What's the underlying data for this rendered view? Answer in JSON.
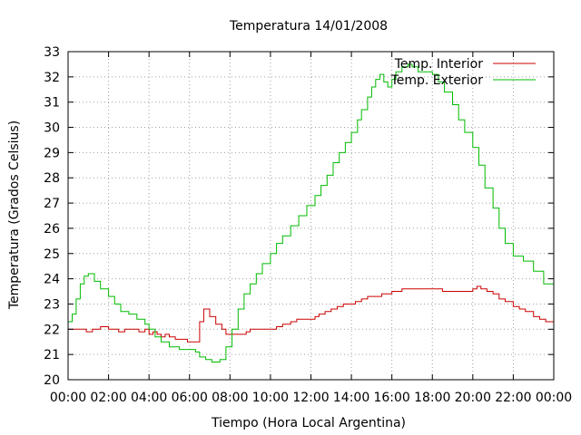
{
  "chart_data": {
    "type": "line",
    "title": "Temperatura 14/01/2008",
    "xlabel": "Tiempo (Hora Local Argentina)",
    "ylabel": "Temperatura (Grados Celsius)",
    "xlim": [
      0,
      24
    ],
    "ylim": [
      20,
      33
    ],
    "grid": true,
    "legend_position": "top-right",
    "x_ticks": [
      "00:00",
      "02:00",
      "04:00",
      "06:00",
      "08:00",
      "10:00",
      "12:00",
      "14:00",
      "16:00",
      "18:00",
      "20:00",
      "22:00",
      "00:00"
    ],
    "y_ticks": [
      "20",
      "21",
      "22",
      "23",
      "24",
      "25",
      "26",
      "27",
      "28",
      "29",
      "30",
      "31",
      "32",
      "33"
    ],
    "series": [
      {
        "name": "Temp. Interior",
        "color": "#cc0000",
        "points": [
          [
            0.0,
            22.0
          ],
          [
            0.8,
            22.0
          ],
          [
            0.9,
            21.9
          ],
          [
            1.2,
            22.0
          ],
          [
            1.5,
            22.0
          ],
          [
            1.6,
            22.1
          ],
          [
            2.0,
            22.0
          ],
          [
            2.3,
            22.0
          ],
          [
            2.5,
            21.9
          ],
          [
            2.8,
            22.0
          ],
          [
            3.2,
            22.0
          ],
          [
            3.5,
            21.9
          ],
          [
            3.8,
            22.0
          ],
          [
            4.0,
            21.8
          ],
          [
            4.2,
            21.9
          ],
          [
            4.4,
            21.8
          ],
          [
            4.6,
            21.7
          ],
          [
            4.8,
            21.8
          ],
          [
            5.0,
            21.7
          ],
          [
            5.3,
            21.6
          ],
          [
            5.6,
            21.6
          ],
          [
            5.9,
            21.5
          ],
          [
            6.3,
            21.5
          ],
          [
            6.5,
            22.3
          ],
          [
            6.7,
            22.8
          ],
          [
            7.0,
            22.5
          ],
          [
            7.3,
            22.2
          ],
          [
            7.6,
            22.0
          ],
          [
            7.8,
            21.8
          ],
          [
            8.5,
            21.8
          ],
          [
            8.8,
            21.9
          ],
          [
            9.0,
            22.0
          ],
          [
            10.0,
            22.0
          ],
          [
            10.3,
            22.1
          ],
          [
            10.6,
            22.2
          ],
          [
            11.0,
            22.3
          ],
          [
            11.3,
            22.4
          ],
          [
            11.6,
            22.4
          ],
          [
            12.0,
            22.4
          ],
          [
            12.2,
            22.5
          ],
          [
            12.4,
            22.6
          ],
          [
            12.7,
            22.7
          ],
          [
            13.0,
            22.8
          ],
          [
            13.3,
            22.9
          ],
          [
            13.6,
            23.0
          ],
          [
            14.0,
            23.0
          ],
          [
            14.2,
            23.1
          ],
          [
            14.5,
            23.2
          ],
          [
            14.8,
            23.3
          ],
          [
            15.0,
            23.3
          ],
          [
            15.5,
            23.4
          ],
          [
            16.0,
            23.5
          ],
          [
            16.5,
            23.6
          ],
          [
            17.0,
            23.6
          ],
          [
            17.5,
            23.6
          ],
          [
            18.0,
            23.6
          ],
          [
            18.5,
            23.5
          ],
          [
            19.0,
            23.5
          ],
          [
            19.5,
            23.5
          ],
          [
            20.0,
            23.6
          ],
          [
            20.2,
            23.7
          ],
          [
            20.4,
            23.6
          ],
          [
            20.7,
            23.5
          ],
          [
            21.0,
            23.4
          ],
          [
            21.3,
            23.2
          ],
          [
            21.6,
            23.1
          ],
          [
            22.0,
            22.9
          ],
          [
            22.3,
            22.8
          ],
          [
            22.6,
            22.7
          ],
          [
            23.0,
            22.5
          ],
          [
            23.3,
            22.4
          ],
          [
            23.6,
            22.3
          ],
          [
            24.0,
            22.3
          ]
        ]
      },
      {
        "name": "Temp. Exterior",
        "color": "#00bb00",
        "points": [
          [
            0.0,
            22.3
          ],
          [
            0.2,
            22.6
          ],
          [
            0.4,
            23.2
          ],
          [
            0.6,
            23.8
          ],
          [
            0.8,
            24.1
          ],
          [
            1.0,
            24.2
          ],
          [
            1.3,
            23.9
          ],
          [
            1.6,
            23.6
          ],
          [
            2.0,
            23.3
          ],
          [
            2.3,
            23.0
          ],
          [
            2.6,
            22.7
          ],
          [
            3.0,
            22.6
          ],
          [
            3.4,
            22.4
          ],
          [
            3.8,
            22.2
          ],
          [
            4.0,
            22.0
          ],
          [
            4.3,
            21.7
          ],
          [
            4.6,
            21.5
          ],
          [
            5.0,
            21.3
          ],
          [
            5.5,
            21.2
          ],
          [
            6.0,
            21.2
          ],
          [
            6.3,
            21.1
          ],
          [
            6.5,
            20.9
          ],
          [
            6.8,
            20.8
          ],
          [
            7.1,
            20.7
          ],
          [
            7.5,
            20.8
          ],
          [
            7.8,
            21.3
          ],
          [
            8.1,
            22.0
          ],
          [
            8.4,
            22.8
          ],
          [
            8.7,
            23.4
          ],
          [
            9.0,
            23.8
          ],
          [
            9.3,
            24.2
          ],
          [
            9.6,
            24.6
          ],
          [
            10.0,
            25.0
          ],
          [
            10.3,
            25.4
          ],
          [
            10.6,
            25.7
          ],
          [
            11.0,
            26.1
          ],
          [
            11.4,
            26.5
          ],
          [
            11.8,
            26.9
          ],
          [
            12.2,
            27.3
          ],
          [
            12.5,
            27.7
          ],
          [
            12.8,
            28.1
          ],
          [
            13.1,
            28.6
          ],
          [
            13.4,
            29.0
          ],
          [
            13.7,
            29.4
          ],
          [
            14.0,
            29.8
          ],
          [
            14.3,
            30.3
          ],
          [
            14.5,
            30.7
          ],
          [
            14.8,
            31.2
          ],
          [
            15.0,
            31.6
          ],
          [
            15.2,
            31.9
          ],
          [
            15.4,
            32.1
          ],
          [
            15.6,
            31.8
          ],
          [
            15.8,
            31.6
          ],
          [
            16.0,
            31.9
          ],
          [
            16.2,
            32.2
          ],
          [
            16.5,
            32.4
          ],
          [
            16.8,
            32.5
          ],
          [
            17.0,
            32.4
          ],
          [
            17.3,
            32.2
          ],
          [
            17.6,
            32.2
          ],
          [
            18.0,
            32.1
          ],
          [
            18.3,
            31.8
          ],
          [
            18.6,
            31.4
          ],
          [
            19.0,
            30.9
          ],
          [
            19.3,
            30.3
          ],
          [
            19.6,
            29.8
          ],
          [
            20.0,
            29.2
          ],
          [
            20.3,
            28.5
          ],
          [
            20.6,
            27.6
          ],
          [
            21.0,
            26.8
          ],
          [
            21.3,
            26.0
          ],
          [
            21.6,
            25.4
          ],
          [
            22.0,
            24.9
          ],
          [
            22.5,
            24.7
          ],
          [
            23.0,
            24.3
          ],
          [
            23.5,
            23.8
          ],
          [
            24.0,
            23.3
          ]
        ]
      }
    ]
  }
}
